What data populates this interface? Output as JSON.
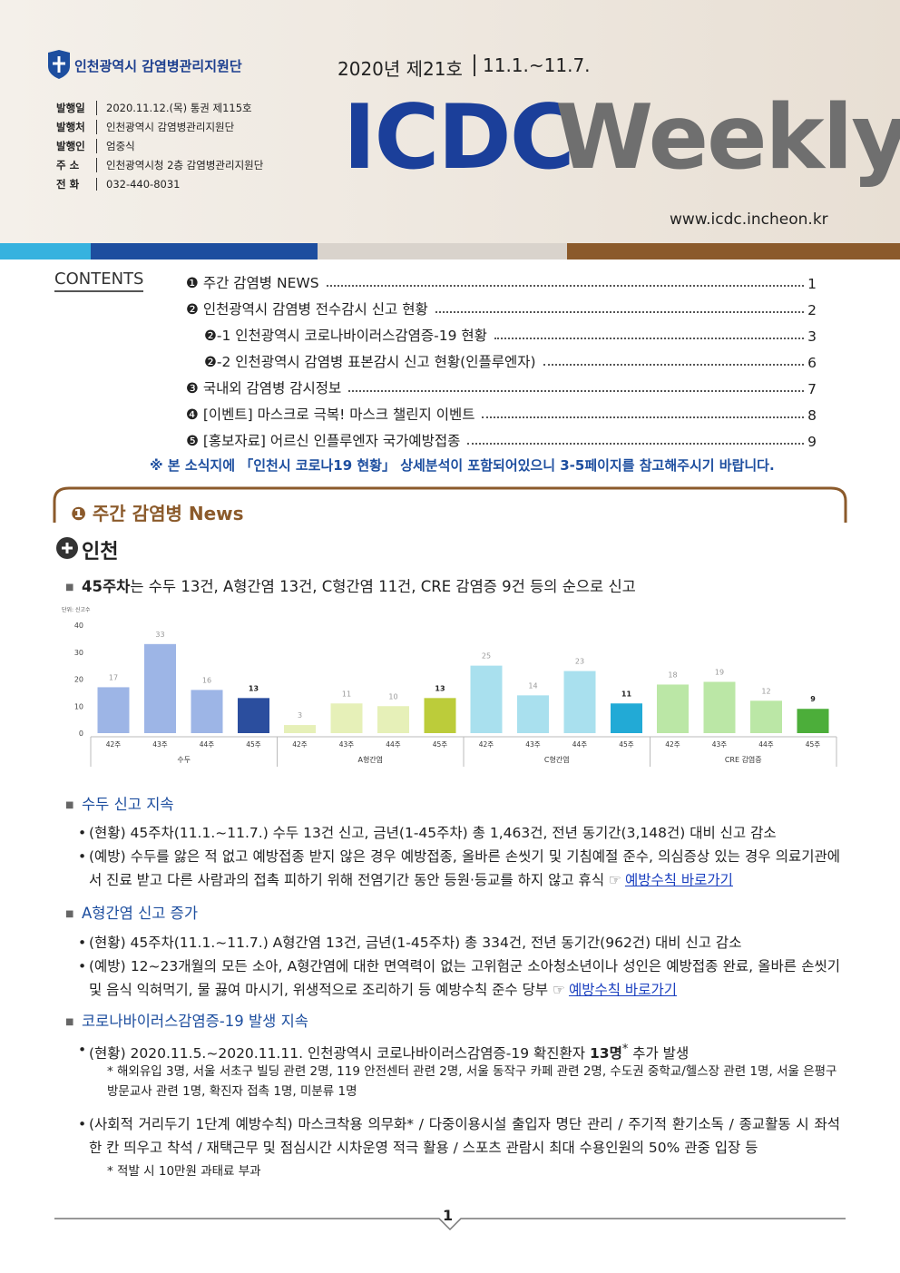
{
  "header": {
    "org": "인천광역시 감염병관리지원단",
    "issue": "2020년 제21호",
    "period": "11.1.~11.7.",
    "title_main": "ICDC",
    "title_sub": "Weekly",
    "url": "www.icdc.incheon.kr",
    "info": [
      {
        "label": "발행일",
        "value": "2020.11.12.(목) 통권 제115호"
      },
      {
        "label": "발행처",
        "value": "인천광역시 감염병관리지원단"
      },
      {
        "label": "발행인",
        "value": "엄중식"
      },
      {
        "label": "주 소",
        "value": "인천광역시청 2층 감염병관리지원단"
      },
      {
        "label": "전 화",
        "value": "032-440-8031"
      }
    ]
  },
  "contents": {
    "label": "CONTENTS",
    "items": [
      {
        "marker": "❶",
        "text": "주간 감염병 NEWS",
        "page": "1"
      },
      {
        "marker": "❷",
        "text": "인천광역시 감염병 전수감시 신고 현황",
        "page": "2"
      },
      {
        "marker": "❷-1",
        "text": "인천광역시 코로나바이러스감염증-19 현황",
        "page": "3",
        "sub": true
      },
      {
        "marker": "❷-2",
        "text": "인천광역시 감염병 표본감시 신고 현황(인플루엔자)",
        "page": "6",
        "sub": true
      },
      {
        "marker": "❸",
        "text": "국내외 감염병 감시정보",
        "page": "7"
      },
      {
        "marker": "❹",
        "text": "[이벤트] 마스크로 극복! 마스크 챌린지 이벤트",
        "page": "8"
      },
      {
        "marker": "❺",
        "text": "[홍보자료] 어르신 인플루엔자 국가예방접종",
        "page": "9"
      }
    ],
    "note": "※ 본 소식지에 「인천시 코로나19 현황」 상세분석이 포함되어있으니 3-5페이지를 참고해주시기 바랍니다."
  },
  "section": {
    "marker": "❶",
    "title": "주간 감염병 News",
    "subtitle": "인천",
    "summary_bold": "45주차",
    "summary": "는 수두 13건, A형간염 13건, C형간염 11건, CRE 감염증 9건 등의 순으로 신고"
  },
  "chart_data": {
    "type": "bar",
    "unit": "단위: 신고수",
    "categories": [
      "42주",
      "43주",
      "44주",
      "45주"
    ],
    "groups": [
      {
        "name": "수두",
        "values": [
          17,
          33,
          16,
          13
        ],
        "colors": [
          "#9db5e6",
          "#9db5e6",
          "#9db5e6",
          "#2b4e9e"
        ]
      },
      {
        "name": "A형간염",
        "values": [
          3,
          11,
          10,
          13
        ],
        "colors": [
          "#e6f0b8",
          "#e6f0b8",
          "#e6f0b8",
          "#bccc3a"
        ]
      },
      {
        "name": "C형간염",
        "values": [
          25,
          14,
          23,
          11
        ],
        "colors": [
          "#a9e0ee",
          "#a9e0ee",
          "#a9e0ee",
          "#22aad6"
        ]
      },
      {
        "name": "CRE 감염증",
        "values": [
          18,
          19,
          12,
          9
        ],
        "colors": [
          "#bbe7a6",
          "#bbe7a6",
          "#bbe7a6",
          "#4cae3a"
        ]
      }
    ],
    "ylim": [
      0,
      40
    ],
    "yticks": [
      0,
      10,
      20,
      30,
      40
    ]
  },
  "news": [
    {
      "heading": "수두 신고 지속",
      "bullets": [
        {
          "text": "(현황) 45주차(11.1.~11.7.) 수두 13건 신고, 금년(1-45주차) 총 1,463건, 전년 동기간(3,148건) 대비 신고 감소"
        },
        {
          "text": "(예방) 수두를 앓은 적 없고 예방접종 받지 않은 경우 예방접종, 올바른 손씻기 및 기침예절 준수, 의심증상 있는 경우 의료기관에서 진료 받고 다른 사람과의 접촉 피하기 위해 전염기간 동안 등원·등교를 하지 않고 휴식",
          "link": "예방수칙 바로가기"
        }
      ]
    },
    {
      "heading": "A형간염 신고 증가",
      "bullets": [
        {
          "text": "(현황) 45주차(11.1.~11.7.) A형간염 13건, 금년(1-45주차) 총 334건, 전년 동기간(962건) 대비 신고 감소"
        },
        {
          "text": "(예방) 12~23개월의 모든 소아, A형간염에 대한 면역력이 없는 고위험군 소아청소년이나 성인은 예방접종 완료, 올바른 손씻기 및 음식 익혀먹기, 물 끓여 마시기, 위생적으로 조리하기 등 예방수칙 준수 당부",
          "link": "예방수칙 바로가기"
        }
      ]
    },
    {
      "heading": "코로나바이러스감염증-19 발생 지속",
      "bullets": [
        {
          "text": "(현황) 2020.11.5.~2020.11.11. 인천광역시 코로나바이러스감염증-19 확진환자",
          "bold": "13명",
          "mark": "*",
          "after": "추가 발생",
          "note": "* 해외유입 3명, 서울 서초구 빌딩 관련 2명, 119 안전센터 관련 2명, 서울 동작구 카페 관련 2명, 수도권 중학교/헬스장 관련 1명, 서울 은평구 방문교사 관련 1명, 확진자 접촉 1명, 미분류 1명"
        },
        {
          "text": "(사회적 거리두기 1단계 예방수칙) 마스크착용 의무화* / 다중이용시설 출입자 명단 관리 / 주기적 환기소독 / 종교활동 시 좌석 한 칸 띄우고 착석 / 재택근무 및 점심시간 시차운영 적극 활용 / 스포츠 관람시 최대 수용인원의 50% 관중 입장 등",
          "note": "* 적발 시 10만원 과태료 부과"
        }
      ]
    }
  ],
  "page_number": "1"
}
